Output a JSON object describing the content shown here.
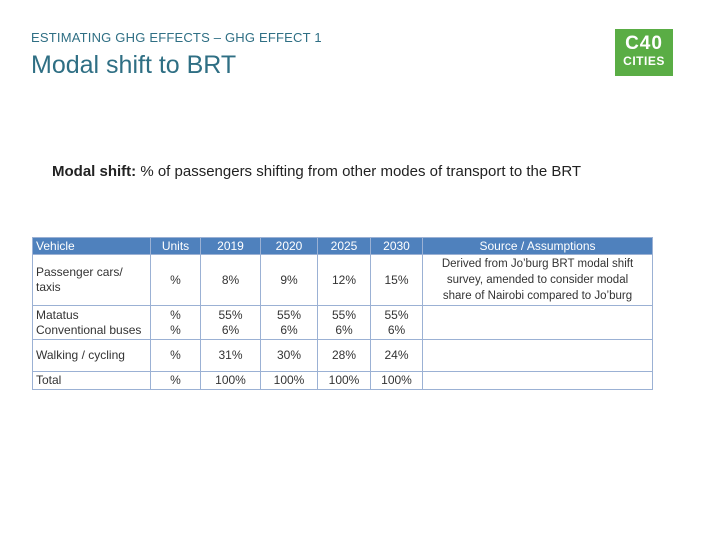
{
  "header": {
    "kicker": "ESTIMATING GHG EFFECTS – GHG EFFECT 1",
    "title": "Modal shift to BRT",
    "logo": [
      "C40",
      "CITIES"
    ]
  },
  "subtitle": {
    "label": "Modal shift:",
    "text": "% of passengers shifting from other modes of transport to the BRT"
  },
  "table": {
    "columns": [
      "Vehicle",
      "Units",
      "2019",
      "2020",
      "2025",
      "2030",
      "Source / Assumptions"
    ],
    "rows": [
      [
        [
          "Passenger cars/",
          "taxis"
        ],
        [
          "%"
        ],
        [
          "8%"
        ],
        [
          "9%"
        ],
        [
          "12%"
        ],
        [
          "15%"
        ],
        [
          "Derived from  Jo’burg BRT modal shift",
          "survey, amended to consider modal",
          "share of Nairobi compared to Jo’burg"
        ]
      ],
      [
        [
          "Matatus",
          "Conventional buses"
        ],
        [
          "%",
          "%"
        ],
        [
          "55%",
          "6%"
        ],
        [
          "55%",
          "6%"
        ],
        [
          "55%",
          "6%"
        ],
        [
          "55%",
          "6%"
        ]
      ],
      [
        [
          "Walking / cycling"
        ],
        [
          "%"
        ],
        [
          "31%"
        ],
        [
          "30%"
        ],
        [
          "28%"
        ],
        [
          "24%"
        ]
      ],
      [
        [
          "Total"
        ],
        [
          "%"
        ],
        [
          "100%"
        ],
        [
          "100%"
        ],
        [
          "100%"
        ],
        [
          "100%"
        ]
      ]
    ]
  }
}
